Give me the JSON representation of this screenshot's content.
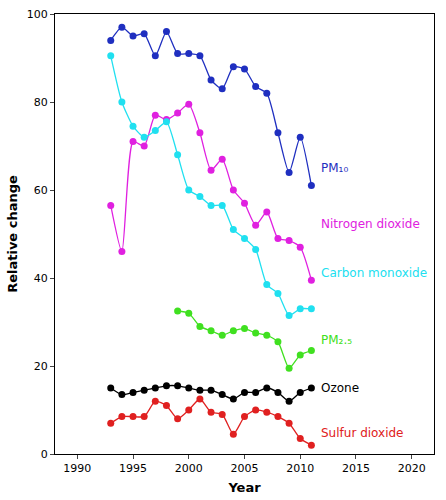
{
  "chart_data": {
    "type": "line",
    "x_label": "Year",
    "y_label": "Relative change",
    "x": [
      1993,
      1994,
      1995,
      1996,
      1997,
      1998,
      1999,
      2000,
      2001,
      2002,
      2003,
      2004,
      2005,
      2006,
      2007,
      2008,
      2009,
      2010,
      2011
    ],
    "xlim": [
      1988,
      2022
    ],
    "xticks": [
      1990,
      1995,
      2000,
      2005,
      2010,
      2015,
      2020
    ],
    "ylim": [
      0,
      100
    ],
    "yticks": [
      0,
      20,
      40,
      60,
      80,
      100
    ],
    "grid": false,
    "marker": "circle",
    "line_style": "solid",
    "series": [
      {
        "name": "PM₁₀",
        "color": "#1f2fc0",
        "values": [
          94,
          97,
          95,
          95.5,
          90.5,
          96,
          91,
          91,
          90.5,
          85,
          83,
          88,
          87.5,
          83.5,
          82,
          73,
          64,
          72,
          61
        ]
      },
      {
        "name": "Nitrogen dioxide",
        "color": "#e020e0",
        "values": [
          56.5,
          46,
          71,
          70,
          77,
          76,
          77.5,
          79.5,
          73,
          64.5,
          67,
          60,
          57,
          52,
          55,
          49,
          48.5,
          47,
          39.5
        ]
      },
      {
        "name": "Carbon monoxide",
        "color": "#20e0f0",
        "values": [
          90.5,
          80,
          74.5,
          72,
          73.5,
          75.5,
          68,
          60,
          58.5,
          56.5,
          56.5,
          51,
          49,
          46.5,
          38.5,
          36.5,
          31.5,
          33,
          33
        ]
      },
      {
        "name": "PM₂.₅",
        "color": "#40e020",
        "values": [
          null,
          null,
          null,
          null,
          null,
          null,
          32.5,
          32,
          29,
          28,
          27,
          28,
          28.5,
          27.5,
          27,
          25.5,
          19.5,
          22.5,
          23.5
        ]
      },
      {
        "name": "Ozone",
        "color": "#000000",
        "values": [
          15,
          13.5,
          14,
          14.5,
          15,
          15.5,
          15.5,
          15,
          14.5,
          14.5,
          13.5,
          12.5,
          14,
          14,
          15,
          14,
          12,
          14,
          15
        ]
      },
      {
        "name": "Sulfur dioxide",
        "color": "#e02020",
        "values": [
          7,
          8.5,
          8.5,
          8.5,
          12,
          11,
          8,
          10,
          12.5,
          9.5,
          9,
          4.5,
          8.5,
          10,
          9.5,
          8.5,
          7,
          3.5,
          2
        ]
      }
    ]
  }
}
